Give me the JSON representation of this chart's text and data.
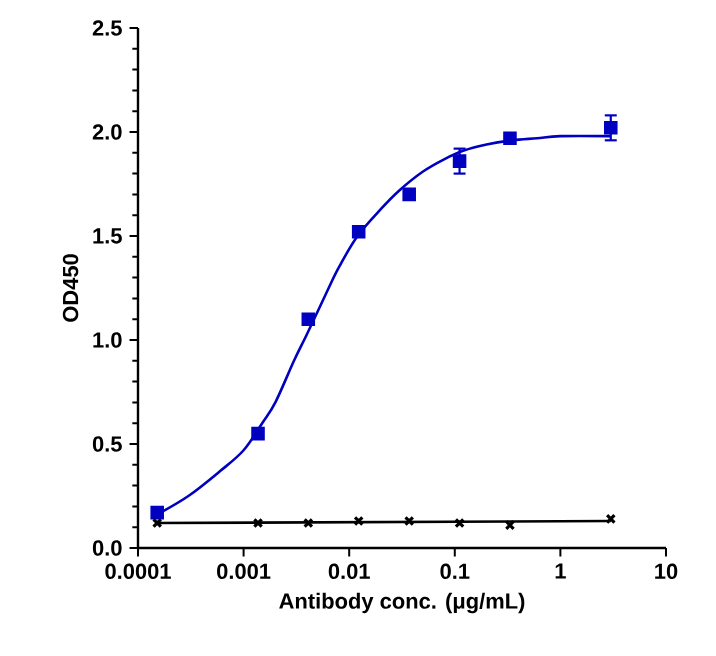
{
  "chart_data": {
    "type": "scatter",
    "xlabel": "Antibody conc. (μg/mL)",
    "ylabel": "OD450",
    "log": "x",
    "grid": false,
    "xlim": [
      0.0001,
      10
    ],
    "xticks": [
      0.0001,
      0.001,
      0.01,
      0.1,
      1,
      10
    ],
    "ylim": [
      0,
      2.5
    ],
    "yticks": [
      {
        "value": 0,
        "label": "0.0"
      },
      {
        "value": 0.5,
        "label": "0.5"
      },
      {
        "value": 1,
        "label": "1.0"
      },
      {
        "value": 1.5,
        "label": "1.5"
      },
      {
        "value": 2,
        "label": "2.0"
      },
      {
        "value": 2.5,
        "label": "2.5"
      }
    ],
    "series": [
      {
        "color": "#0000c0",
        "marker": "square",
        "x": [
          0.000152,
          0.00137,
          0.0041,
          0.0123,
          0.037,
          0.111,
          0.333,
          3
        ],
        "values": [
          0.17,
          0.55,
          1.1,
          1.52,
          1.7,
          1.86,
          1.97,
          2.02
        ],
        "errors": [
          null,
          null,
          null,
          null,
          null,
          0.06,
          null,
          0.06
        ]
      },
      {
        "type": "line",
        "color": "#0000c0",
        "marker": "none",
        "line_style": "solid",
        "x": [
          0.00015,
          0.0003,
          0.0006,
          0.001,
          0.0015,
          0.002,
          0.003,
          0.004,
          0.006,
          0.008,
          0.012,
          0.02,
          0.03,
          0.05,
          0.08,
          0.12,
          0.2,
          0.35,
          0.6,
          1,
          3
        ],
        "values": [
          0.16,
          0.25,
          0.37,
          0.47,
          0.6,
          0.7,
          0.9,
          1.03,
          1.22,
          1.35,
          1.5,
          1.63,
          1.72,
          1.81,
          1.87,
          1.91,
          1.94,
          1.96,
          1.97,
          1.98,
          1.98
        ]
      },
      {
        "color": "#000000",
        "marker": "cross",
        "x": [
          0.000152,
          0.00137,
          0.0041,
          0.0123,
          0.037,
          0.111,
          0.333,
          3
        ],
        "values": [
          0.12,
          0.12,
          0.12,
          0.13,
          0.13,
          0.12,
          0.11,
          0.14
        ]
      },
      {
        "type": "line",
        "color": "#000000",
        "marker": "none",
        "line_style": "solid",
        "x": [
          0.00015,
          3
        ],
        "values": [
          0.12,
          0.13
        ]
      }
    ]
  }
}
